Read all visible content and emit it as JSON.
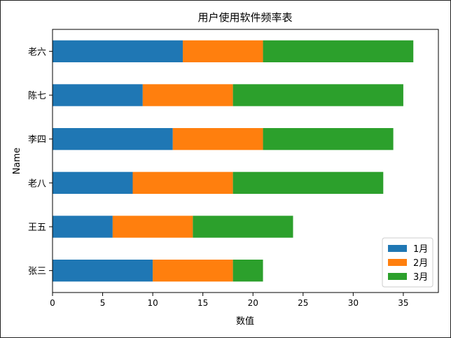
{
  "chart_data": {
    "type": "bar",
    "orientation": "horizontal",
    "stacked": true,
    "title": "用户使用软件频率表",
    "xlabel": "数值",
    "ylabel": "Name",
    "categories": [
      "张三",
      "王五",
      "老八",
      "李四",
      "陈七",
      "老六"
    ],
    "series": [
      {
        "name": "1月",
        "color": "#1f77b4",
        "values": [
          10,
          6,
          8,
          12,
          9,
          13
        ]
      },
      {
        "name": "2月",
        "color": "#ff7f0e",
        "values": [
          8,
          8,
          10,
          9,
          9,
          8
        ]
      },
      {
        "name": "3月",
        "color": "#2ca02c",
        "values": [
          3,
          10,
          15,
          13,
          17,
          15
        ]
      }
    ],
    "xlim": [
      0,
      38.5
    ],
    "xticks": [
      0,
      5,
      10,
      15,
      20,
      25,
      30,
      35
    ],
    "grid": false,
    "legend": "lower-right"
  }
}
